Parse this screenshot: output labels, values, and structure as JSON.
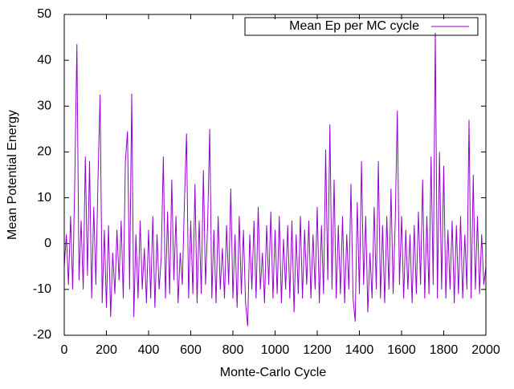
{
  "chart_data": {
    "type": "line",
    "xlabel": "Monte-Carlo Cycle",
    "ylabel": "Mean Potential Energy",
    "legend": "top-right",
    "x": [
      0,
      10,
      20,
      30,
      40,
      50,
      60,
      70,
      80,
      90,
      100,
      110,
      120,
      130,
      140,
      150,
      160,
      170,
      180,
      190,
      200,
      210,
      220,
      230,
      240,
      250,
      260,
      270,
      280,
      290,
      300,
      310,
      320,
      330,
      340,
      350,
      360,
      370,
      380,
      390,
      400,
      410,
      420,
      430,
      440,
      450,
      460,
      470,
      480,
      490,
      500,
      510,
      520,
      530,
      540,
      550,
      560,
      570,
      580,
      590,
      600,
      610,
      620,
      630,
      640,
      650,
      660,
      670,
      680,
      690,
      700,
      710,
      720,
      730,
      740,
      750,
      760,
      770,
      780,
      790,
      800,
      810,
      820,
      830,
      840,
      850,
      860,
      870,
      880,
      890,
      900,
      910,
      920,
      930,
      940,
      950,
      960,
      970,
      980,
      990,
      1000,
      1010,
      1020,
      1030,
      1040,
      1050,
      1060,
      1070,
      1080,
      1090,
      1100,
      1110,
      1120,
      1130,
      1140,
      1150,
      1160,
      1170,
      1180,
      1190,
      1200,
      1210,
      1220,
      1230,
      1240,
      1250,
      1260,
      1270,
      1280,
      1290,
      1300,
      1310,
      1320,
      1330,
      1340,
      1350,
      1360,
      1370,
      1380,
      1390,
      1400,
      1410,
      1420,
      1430,
      1440,
      1450,
      1460,
      1470,
      1480,
      1490,
      1500,
      1510,
      1520,
      1530,
      1540,
      1550,
      1560,
      1570,
      1580,
      1590,
      1600,
      1610,
      1620,
      1630,
      1640,
      1650,
      1660,
      1670,
      1680,
      1690,
      1700,
      1710,
      1720,
      1730,
      1740,
      1750,
      1760,
      1770,
      1780,
      1790,
      1800,
      1810,
      1820,
      1830,
      1840,
      1850,
      1860,
      1870,
      1880,
      1890,
      1900,
      1910,
      1920,
      1930,
      1940,
      1950,
      1960,
      1970,
      1980,
      1990,
      2000
    ],
    "series": [
      {
        "name": "Mean Ep per MC cycle",
        "color": "#9400d3",
        "values": [
          -5,
          2,
          -9,
          6,
          -10,
          14,
          43.5,
          -8,
          5,
          -10,
          19,
          -7,
          18,
          -12,
          8,
          -9,
          14,
          32.5,
          -13,
          3,
          -14,
          4,
          -16,
          -2,
          -11,
          3,
          -8,
          5,
          -12,
          18,
          24.5,
          -10,
          32.7,
          -16,
          2,
          -12,
          5,
          -10,
          -1,
          -13,
          3,
          -12,
          6,
          -14,
          2,
          -10,
          -3,
          19,
          -12,
          7,
          -11,
          14,
          -8,
          6,
          -13,
          -2,
          -9,
          9,
          24,
          -12,
          5,
          -11,
          13,
          -13,
          5,
          -11,
          16,
          -9,
          4,
          25,
          -12,
          3,
          -13,
          6,
          -10,
          -1,
          -12,
          4,
          -9,
          12,
          -12,
          2,
          -14,
          6,
          -11,
          3,
          -13,
          -18,
          2,
          -10,
          5,
          -12,
          8,
          -10,
          -2,
          -13,
          4,
          -9,
          7,
          -12,
          3,
          -11,
          6,
          -13,
          1,
          -10,
          4,
          -12,
          5,
          -15,
          2,
          -11,
          6,
          -12,
          3,
          -9,
          5,
          -12,
          2,
          -10,
          8,
          -13,
          4,
          -11,
          20.5,
          -8,
          26,
          -10,
          14,
          -12,
          4,
          -11,
          6,
          -13,
          2,
          -10,
          13,
          -12,
          -17,
          9,
          -11,
          18,
          -9,
          6,
          -15,
          -2,
          -12,
          8,
          -10,
          18,
          -12,
          4,
          -13,
          6,
          -10,
          12,
          -11,
          5,
          29,
          -9,
          6,
          -12,
          3,
          -10,
          2,
          -13,
          4,
          -11,
          7,
          -9,
          14,
          -12,
          6,
          -11,
          19,
          -9,
          46,
          -12,
          20,
          -10,
          17,
          -12,
          3,
          -10,
          5,
          -13,
          4,
          -11,
          6,
          -12,
          2,
          -10,
          27,
          -12,
          15,
          -10,
          6,
          -11,
          2,
          -9,
          -5
        ]
      }
    ],
    "xlim": [
      0,
      2000
    ],
    "xticks": [
      0,
      200,
      400,
      600,
      800,
      1000,
      1200,
      1400,
      1600,
      1800,
      2000
    ],
    "ylim": [
      -20,
      50
    ],
    "yticks": [
      -20,
      -10,
      0,
      10,
      20,
      30,
      40,
      50
    ]
  }
}
